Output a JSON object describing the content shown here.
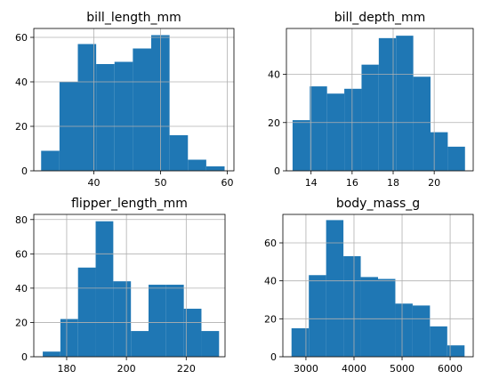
{
  "chart_data": [
    {
      "type": "bar",
      "title": "bill_length_mm",
      "xlabel": "",
      "ylabel": "",
      "xlim": [
        31.0,
        61.0
      ],
      "ylim": [
        0,
        64
      ],
      "xticks": [
        40,
        50,
        60
      ],
      "yticks": [
        0,
        20,
        40,
        60
      ],
      "grid": true,
      "bin_edges": [
        32.1,
        34.85,
        37.6,
        40.35,
        43.1,
        45.85,
        48.6,
        51.35,
        54.1,
        56.85,
        59.6
      ],
      "values": [
        9,
        40,
        57,
        48,
        49,
        55,
        61,
        16,
        5,
        2
      ]
    },
    {
      "type": "bar",
      "title": "bill_depth_mm",
      "xlabel": "",
      "ylabel": "",
      "xlim": [
        12.8,
        21.9
      ],
      "ylim": [
        0,
        59
      ],
      "xticks": [
        14,
        16,
        18,
        20
      ],
      "yticks": [
        0,
        20,
        40
      ],
      "grid": true,
      "bin_edges": [
        13.1,
        13.94,
        14.78,
        15.62,
        16.46,
        17.3,
        18.14,
        18.98,
        19.82,
        20.66,
        21.5
      ],
      "values": [
        21,
        35,
        32,
        34,
        44,
        55,
        56,
        39,
        16,
        10
      ]
    },
    {
      "type": "bar",
      "title": "flipper_length_mm",
      "xlabel": "",
      "ylabel": "",
      "xlim": [
        169,
        233
      ],
      "ylim": [
        0,
        83
      ],
      "xticks": [
        180,
        200,
        220
      ],
      "yticks": [
        0,
        20,
        40,
        60,
        80
      ],
      "grid": true,
      "bin_edges": [
        172,
        177.9,
        183.8,
        189.7,
        195.6,
        201.5,
        207.4,
        213.3,
        219.2,
        225.1,
        231
      ],
      "values": [
        3,
        22,
        52,
        79,
        44,
        15,
        42,
        42,
        28,
        15
      ]
    },
    {
      "type": "bar",
      "title": "body_mass_g",
      "xlabel": "",
      "ylabel": "",
      "xlim": [
        2520,
        6480
      ],
      "ylim": [
        0,
        75
      ],
      "xticks": [
        3000,
        4000,
        5000,
        6000
      ],
      "yticks": [
        0,
        20,
        40,
        60
      ],
      "grid": true,
      "bin_edges": [
        2700,
        3060,
        3420,
        3780,
        4140,
        4500,
        4860,
        5220,
        5580,
        5940,
        6300
      ],
      "values": [
        15,
        43,
        72,
        53,
        42,
        41,
        28,
        27,
        16,
        6
      ]
    }
  ],
  "colors": {
    "bar": "#1f77b4",
    "grid": "#b0b0b0",
    "axis": "#000000"
  }
}
